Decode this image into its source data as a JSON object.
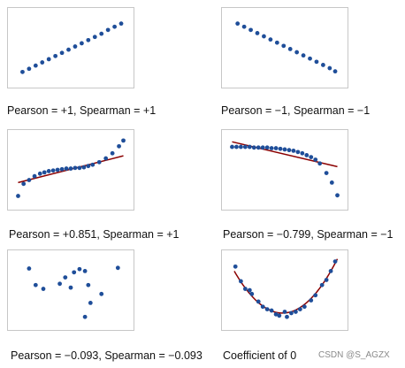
{
  "colors": {
    "points": "#1f4e99",
    "fit_line": "#8b0000",
    "frame": "#c7c7c7",
    "text": "#111111"
  },
  "watermark": "CSDN @S_AGZX",
  "chart_data": [
    {
      "type": "scatter",
      "caption": "Pearson = +1, Spearman = +1",
      "xlim": [
        0,
        1
      ],
      "ylim": [
        0,
        1
      ],
      "fit": null,
      "points": [
        [
          0.06,
          0.12
        ],
        [
          0.12,
          0.17
        ],
        [
          0.18,
          0.22
        ],
        [
          0.24,
          0.27
        ],
        [
          0.3,
          0.32
        ],
        [
          0.36,
          0.37
        ],
        [
          0.42,
          0.42
        ],
        [
          0.48,
          0.47
        ],
        [
          0.54,
          0.52
        ],
        [
          0.6,
          0.57
        ],
        [
          0.66,
          0.62
        ],
        [
          0.72,
          0.67
        ],
        [
          0.78,
          0.72
        ],
        [
          0.84,
          0.78
        ],
        [
          0.9,
          0.83
        ],
        [
          0.96,
          0.88
        ]
      ]
    },
    {
      "type": "scatter",
      "caption": "Pearson = −1, Spearman = −1",
      "xlim": [
        0,
        1
      ],
      "ylim": [
        0,
        1
      ],
      "fit": null,
      "points": [
        [
          0.07,
          0.88
        ],
        [
          0.13,
          0.83
        ],
        [
          0.19,
          0.78
        ],
        [
          0.25,
          0.73
        ],
        [
          0.31,
          0.68
        ],
        [
          0.37,
          0.63
        ],
        [
          0.43,
          0.58
        ],
        [
          0.49,
          0.53
        ],
        [
          0.55,
          0.48
        ],
        [
          0.61,
          0.43
        ],
        [
          0.67,
          0.38
        ],
        [
          0.73,
          0.33
        ],
        [
          0.79,
          0.28
        ],
        [
          0.85,
          0.23
        ],
        [
          0.91,
          0.18
        ],
        [
          0.96,
          0.13
        ]
      ]
    },
    {
      "type": "scatter",
      "caption": "Pearson = +0.851, Spearman = +1",
      "xlim": [
        0,
        1
      ],
      "ylim": [
        0,
        1
      ],
      "fit": {
        "kind": "linear",
        "from": [
          0.02,
          0.3
        ],
        "to": [
          0.98,
          0.72
        ]
      },
      "points": [
        [
          0.02,
          0.09
        ],
        [
          0.07,
          0.28
        ],
        [
          0.12,
          0.34
        ],
        [
          0.17,
          0.4
        ],
        [
          0.22,
          0.44
        ],
        [
          0.26,
          0.46
        ],
        [
          0.3,
          0.48
        ],
        [
          0.34,
          0.49
        ],
        [
          0.38,
          0.5
        ],
        [
          0.42,
          0.51
        ],
        [
          0.46,
          0.52
        ],
        [
          0.5,
          0.52
        ],
        [
          0.54,
          0.53
        ],
        [
          0.58,
          0.53
        ],
        [
          0.62,
          0.54
        ],
        [
          0.66,
          0.56
        ],
        [
          0.7,
          0.58
        ],
        [
          0.76,
          0.62
        ],
        [
          0.82,
          0.68
        ],
        [
          0.88,
          0.76
        ],
        [
          0.94,
          0.87
        ],
        [
          0.98,
          0.96
        ]
      ]
    },
    {
      "type": "scatter",
      "caption": "Pearson = −0.799, Spearman = −1",
      "xlim": [
        0,
        1
      ],
      "ylim": [
        0,
        1
      ],
      "fit": {
        "kind": "linear",
        "from": [
          0.02,
          0.94
        ],
        "to": [
          0.98,
          0.55
        ]
      },
      "points": [
        [
          0.02,
          0.86
        ],
        [
          0.06,
          0.86
        ],
        [
          0.1,
          0.86
        ],
        [
          0.14,
          0.86
        ],
        [
          0.18,
          0.86
        ],
        [
          0.22,
          0.85
        ],
        [
          0.26,
          0.85
        ],
        [
          0.3,
          0.85
        ],
        [
          0.34,
          0.85
        ],
        [
          0.38,
          0.84
        ],
        [
          0.42,
          0.84
        ],
        [
          0.46,
          0.83
        ],
        [
          0.5,
          0.82
        ],
        [
          0.54,
          0.81
        ],
        [
          0.58,
          0.8
        ],
        [
          0.62,
          0.78
        ],
        [
          0.66,
          0.76
        ],
        [
          0.7,
          0.73
        ],
        [
          0.74,
          0.7
        ],
        [
          0.78,
          0.66
        ],
        [
          0.82,
          0.6
        ],
        [
          0.88,
          0.45
        ],
        [
          0.93,
          0.3
        ],
        [
          0.98,
          0.1
        ]
      ]
    },
    {
      "type": "scatter",
      "caption": "Pearson = −0.093, Spearman = −0.093",
      "xlim": [
        0,
        1
      ],
      "ylim": [
        0,
        1
      ],
      "fit": null,
      "points": [
        [
          0.12,
          0.84
        ],
        [
          0.18,
          0.58
        ],
        [
          0.25,
          0.52
        ],
        [
          0.4,
          0.6
        ],
        [
          0.45,
          0.7
        ],
        [
          0.5,
          0.54
        ],
        [
          0.53,
          0.78
        ],
        [
          0.58,
          0.83
        ],
        [
          0.63,
          0.8
        ],
        [
          0.66,
          0.58
        ],
        [
          0.68,
          0.3
        ],
        [
          0.78,
          0.44
        ],
        [
          0.63,
          0.08
        ],
        [
          0.93,
          0.85
        ]
      ]
    },
    {
      "type": "scatter",
      "caption": "Coefficient of 0",
      "xlim": [
        0,
        1
      ],
      "ylim": [
        0,
        1
      ],
      "fit": {
        "kind": "quadratic",
        "vertex": [
          0.48,
          0.14
        ],
        "a": 3.4
      },
      "points": [
        [
          0.05,
          0.87
        ],
        [
          0.1,
          0.64
        ],
        [
          0.14,
          0.52
        ],
        [
          0.18,
          0.5
        ],
        [
          0.2,
          0.44
        ],
        [
          0.26,
          0.32
        ],
        [
          0.3,
          0.24
        ],
        [
          0.34,
          0.2
        ],
        [
          0.38,
          0.18
        ],
        [
          0.42,
          0.12
        ],
        [
          0.45,
          0.1
        ],
        [
          0.5,
          0.16
        ],
        [
          0.52,
          0.08
        ],
        [
          0.56,
          0.14
        ],
        [
          0.6,
          0.16
        ],
        [
          0.64,
          0.2
        ],
        [
          0.68,
          0.24
        ],
        [
          0.74,
          0.34
        ],
        [
          0.78,
          0.42
        ],
        [
          0.84,
          0.58
        ],
        [
          0.88,
          0.66
        ],
        [
          0.92,
          0.8
        ],
        [
          0.96,
          0.95
        ]
      ]
    }
  ]
}
